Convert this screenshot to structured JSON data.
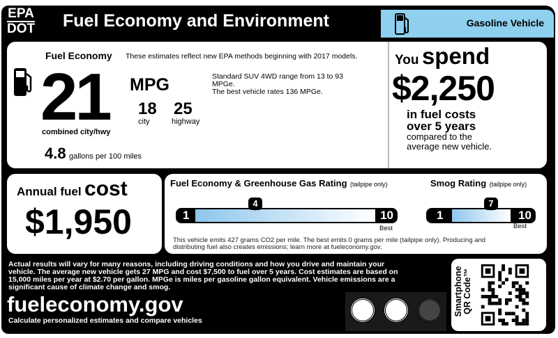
{
  "header": {
    "agency_top": "EPA",
    "agency_bottom": "DOT",
    "title": "Fuel Economy and Environment",
    "vehicle_type": "Gasoline Vehicle",
    "icon": "fuel-pump-icon"
  },
  "fuel_economy": {
    "heading": "Fuel Economy",
    "note": "These estimates reflect new EPA methods beginning with 2017 models.",
    "combined": "21",
    "unit": "MPG",
    "combined_label": "combined city/hwy",
    "city": "18",
    "city_label": "city",
    "highway": "25",
    "highway_label": "highway",
    "range_text": "Standard SUV 4WD range from 13 to 93 MPGe.",
    "best_text": "The best vehicle rates 136 MPGe.",
    "gallons": "4.8",
    "gallons_label": "gallons per 100 miles"
  },
  "spend": {
    "you": "You",
    "spend": "spend",
    "amount": "$2,250",
    "line1": "in fuel costs",
    "line2": "over 5 years",
    "line3": "compared to the",
    "line4": "average new vehicle."
  },
  "annual_cost": {
    "label_a": "Annual fuel",
    "label_b": "cost",
    "amount": "$1,950"
  },
  "ghg_rating": {
    "heading": "Fuel Economy & Greenhouse Gas Rating",
    "qualifier": "(tailpipe only)",
    "min": "1",
    "max": "10",
    "value": "4",
    "best": "Best",
    "emissions_text": "This vehicle emits 427 grams CO2 per mile. The best emits 0 grams per mile (tailpipe only). Producing and distributing fuel also creates emissions; learn more at fueleconomy.gov."
  },
  "smog_rating": {
    "heading": "Smog Rating",
    "qualifier": "(tailpipe only)",
    "min": "1",
    "max": "10",
    "value": "7",
    "best": "Best"
  },
  "footer": {
    "disclaimer": "Actual results will vary for many reasons, including driving conditions and how you drive and maintain your vehicle. The average new vehicle gets 27 MPG and cost $7,500 to fuel over 5 years. Cost estimates are based on 15,000 miles per year at $2.70 per gallon. MPGe is miles per gasoline gallon equivalent. Vehicle emissions are a significant cause of climate change and smog.",
    "website": "fueleconomy.gov",
    "tagline": "Calculate personalized estimates and compare vehicles",
    "qr_label_1": "Smartphone",
    "qr_label_2": "QR Code™"
  },
  "colors": {
    "header_accent": "#8fd0ee",
    "bar_gradient_start": "#8ec6ec"
  }
}
